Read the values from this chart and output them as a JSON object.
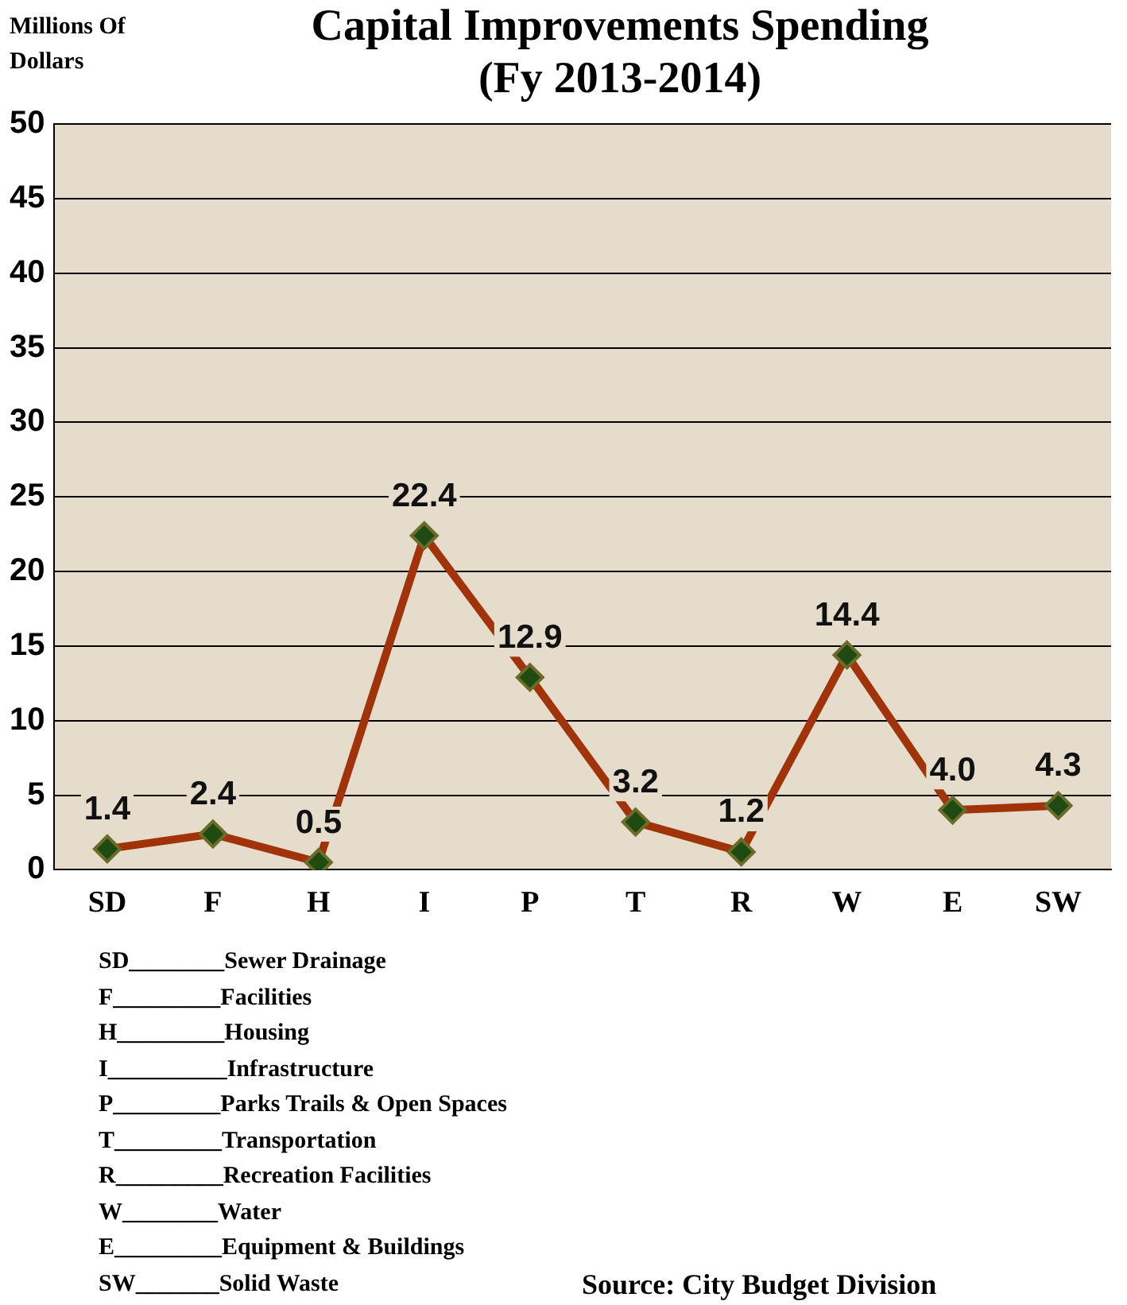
{
  "chart_data": {
    "type": "line",
    "title": "Capital Improvements Spending (Fy 2013-2014)",
    "ylabel": "Millions Of Dollars",
    "categories": [
      "SD",
      "F",
      "H",
      "I",
      "P",
      "T",
      "R",
      "W",
      "E",
      "SW"
    ],
    "series": [
      {
        "color": "#a0330a",
        "values": [
          1.4,
          2.4,
          0.5,
          22.4,
          12.9,
          3.2,
          1.2,
          14.4,
          4.0,
          4.3
        ]
      }
    ],
    "ylim": [
      0,
      50
    ],
    "yticks": [
      0,
      5,
      10,
      15,
      20,
      25,
      30,
      35,
      40,
      45,
      50
    ],
    "grid": "y",
    "legend": false,
    "marker": "diamond",
    "line_style": "solid",
    "value_labels": [
      "1.4",
      "2.4",
      "0.5",
      "22.4",
      "12.9",
      "3.2",
      "1.2",
      "14.4",
      "4.0",
      "4.3"
    ],
    "annotations": [
      "SD________Sewer Drainage",
      "F_________Facilities",
      "H_________Housing",
      "I__________Infrastructure",
      "P_________Parks Trails & Open Spaces",
      "T_________Transportation",
      "R_________Recreation Facilities",
      "W________Water",
      "E_________Equipment & Buildings",
      "SW_______Solid Waste",
      "Source:  City Budget Division"
    ]
  }
}
